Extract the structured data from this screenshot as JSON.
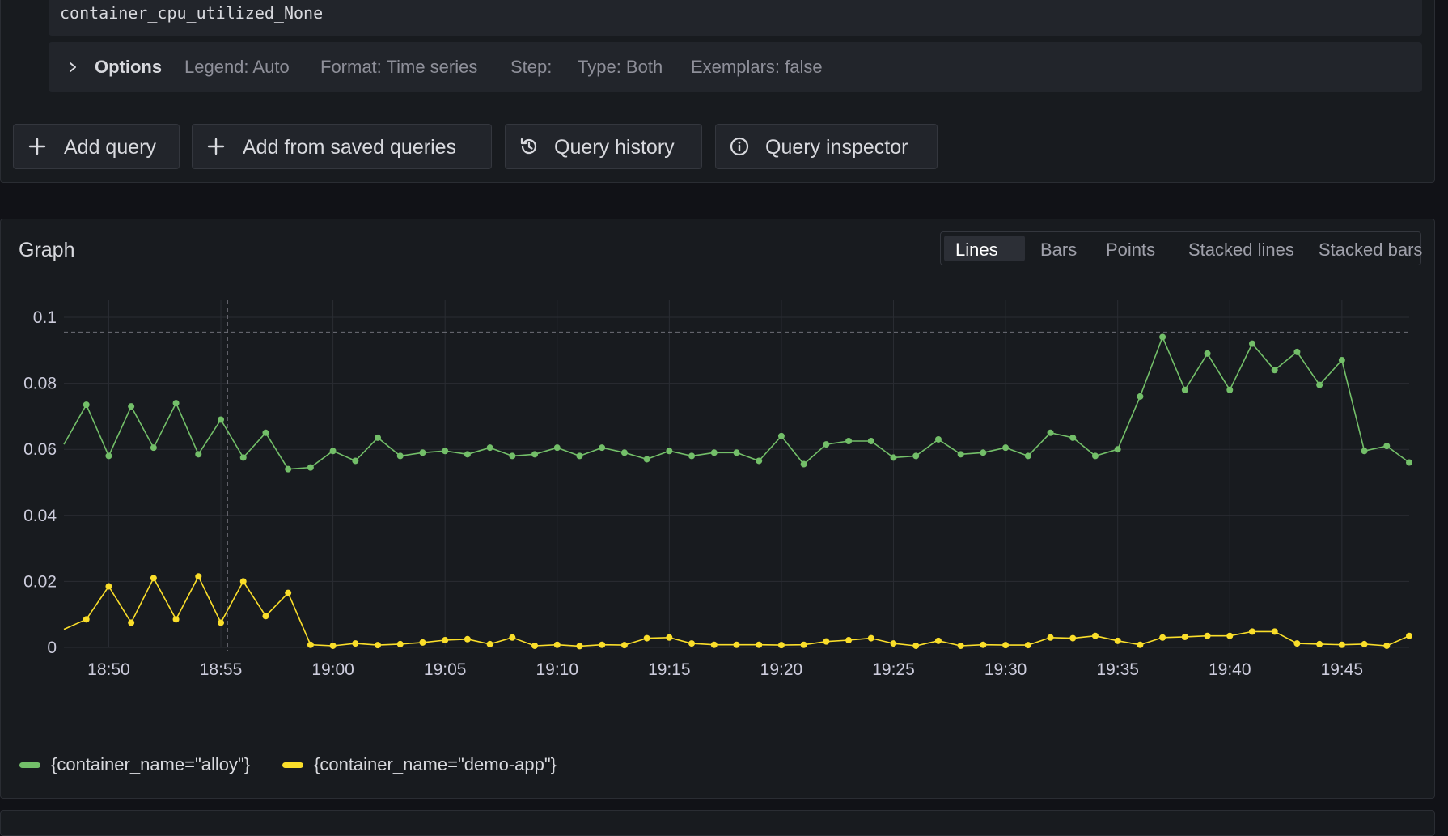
{
  "query": {
    "code": "container_cpu_utilized_None",
    "options_label": "Options",
    "legend": "Legend: Auto",
    "format": "Format: Time series",
    "step": "Step:",
    "type": "Type: Both",
    "exemplars": "Exemplars: false"
  },
  "toolbar": {
    "add_query": "Add query",
    "add_saved": "Add from saved queries",
    "history": "Query history",
    "inspector": "Query inspector"
  },
  "graph": {
    "title": "Graph",
    "modes": [
      "Lines",
      "Bars",
      "Points",
      "Stacked lines",
      "Stacked bars"
    ],
    "active_mode": "Lines"
  },
  "chart_data": {
    "type": "line",
    "xlabel": "",
    "ylabel": "",
    "x_ticks": [
      "18:50",
      "18:55",
      "19:00",
      "19:05",
      "19:10",
      "19:15",
      "19:20",
      "19:25",
      "19:30",
      "19:35",
      "19:40",
      "19:45"
    ],
    "y_ticks": [
      "0",
      "0.02",
      "0.04",
      "0.06",
      "0.08",
      "0.1"
    ],
    "ylim": [
      0,
      0.1
    ],
    "grid": true,
    "legend_position": "bottom-left",
    "x_start": "18:48",
    "x_end": "19:48",
    "x_step_minutes": 1,
    "threshold_dashed_y": 0.0955,
    "series": [
      {
        "name": "{container_name=\"alloy\"}",
        "color": "#73bf69",
        "values": [
          0.0615,
          0.0735,
          0.058,
          0.073,
          0.0605,
          0.074,
          0.0585,
          0.069,
          0.0575,
          0.065,
          0.054,
          0.0545,
          0.0595,
          0.0565,
          0.0635,
          0.058,
          0.059,
          0.0595,
          0.0585,
          0.0605,
          0.058,
          0.0585,
          0.0605,
          0.058,
          0.0605,
          0.059,
          0.057,
          0.0595,
          0.058,
          0.059,
          0.059,
          0.0565,
          0.064,
          0.0555,
          0.0615,
          0.0625,
          0.0625,
          0.0575,
          0.058,
          0.063,
          0.0585,
          0.059,
          0.0605,
          0.058,
          0.065,
          0.0635,
          0.058,
          0.06,
          0.076,
          0.094,
          0.078,
          0.089,
          0.078,
          0.092,
          0.084,
          0.0895,
          0.0795,
          0.087,
          0.0595,
          0.061,
          0.056
        ]
      },
      {
        "name": "{container_name=\"demo-app\"}",
        "color": "#fade2a",
        "values": [
          0.0055,
          0.0085,
          0.0185,
          0.0075,
          0.021,
          0.0085,
          0.0215,
          0.0075,
          0.02,
          0.0095,
          0.0165,
          0.0008,
          0.0005,
          0.0012,
          0.0007,
          0.001,
          0.0015,
          0.0022,
          0.0025,
          0.001,
          0.003,
          0.0005,
          0.0008,
          0.0004,
          0.0008,
          0.0007,
          0.0028,
          0.003,
          0.0012,
          0.0008,
          0.0008,
          0.0008,
          0.0007,
          0.0008,
          0.0018,
          0.0022,
          0.0028,
          0.0012,
          0.0005,
          0.002,
          0.0005,
          0.0008,
          0.0007,
          0.0007,
          0.003,
          0.0028,
          0.0035,
          0.002,
          0.0008,
          0.003,
          0.0032,
          0.0035,
          0.0035,
          0.0048,
          0.0048,
          0.0012,
          0.001,
          0.0008,
          0.001,
          0.0005,
          0.0035
        ]
      }
    ]
  }
}
